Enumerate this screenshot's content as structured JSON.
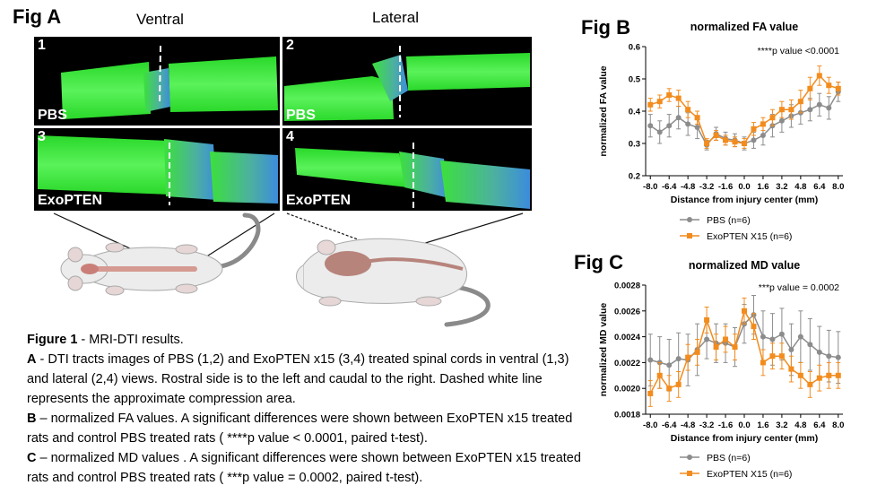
{
  "fig_a": {
    "label": "Fig A",
    "view_ventral": "Ventral",
    "view_lateral": "Lateral",
    "panels": [
      {
        "num": "1",
        "group": "PBS"
      },
      {
        "num": "2",
        "group": "PBS"
      },
      {
        "num": "3",
        "group": "ExoPTEN"
      },
      {
        "num": "4",
        "group": "ExoPTEN"
      }
    ]
  },
  "fig_b_label": "Fig B",
  "fig_c_label": "Fig C",
  "caption": {
    "title": "Figure 1",
    "title_rest": " - MRI-DTI results.",
    "a_key": "A",
    "a_text": " - DTI tracts images of PBS (1,2) and ExoPTEN x15 (3,4) treated spinal cords in ventral (1,3) and lateral (2,4) views. Rostral side is to the left and caudal to the right. Dashed white line represents the approximate compression area.",
    "b_key": "B",
    "b_text": " – normalized FA values. A significant differences were shown between ExoPTEN x15 treated rats and control PBS treated rats ( ****p value < 0.0001, paired t-test).",
    "c_key": "C",
    "c_text": " – normalized MD values . A significant differences were shown between ExoPTEN x15 treated rats and control PBS treated rats ( ***p value = 0.0002, paired t-test)."
  },
  "colors": {
    "pbs": "#8c8c8c",
    "exopten": "#f28c1e",
    "tract_green": "#3cf23c",
    "tract_blue": "#3c8cdc"
  },
  "chart_data": [
    {
      "type": "line",
      "title": "normalized FA value",
      "annotation": "****p value <0.0001",
      "xlabel": "Distance from injury center  (mm)",
      "ylabel": "normalized FA value",
      "ylim": [
        0.2,
        0.6
      ],
      "yticks": [
        0.2,
        0.3,
        0.4,
        0.5,
        0.6
      ],
      "ytick_labels": [
        "0.2",
        "0.3",
        "0.4",
        "0.5",
        "0.6"
      ],
      "xticks": [
        -8.0,
        -6.4,
        -4.8,
        -3.2,
        -1.6,
        0.0,
        1.6,
        3.2,
        4.8,
        6.4,
        8.0
      ],
      "xtick_labels": [
        "-8.0",
        "-6.4",
        "-4.8",
        "-3.2",
        "-1.6",
        "0.0",
        "1.6",
        "3.2",
        "4.8",
        "6.4",
        "8.0"
      ],
      "xlim": [
        -8.4,
        8.4
      ],
      "x": [
        -8.0,
        -7.2,
        -6.4,
        -5.6,
        -4.8,
        -4.0,
        -3.2,
        -2.4,
        -1.6,
        -0.8,
        0.0,
        0.8,
        1.6,
        2.4,
        3.2,
        4.0,
        4.8,
        5.6,
        6.4,
        7.2,
        8.0
      ],
      "series": [
        {
          "name": "PBS (n=6)",
          "color": "#8c8c8c",
          "marker": "circle",
          "values": [
            0.355,
            0.335,
            0.355,
            0.38,
            0.36,
            0.35,
            0.295,
            0.33,
            0.315,
            0.31,
            0.3,
            0.31,
            0.325,
            0.355,
            0.37,
            0.385,
            0.395,
            0.405,
            0.42,
            0.41,
            0.46
          ],
          "errors": [
            0.035,
            0.035,
            0.035,
            0.035,
            0.035,
            0.035,
            0.015,
            0.02,
            0.02,
            0.02,
            0.02,
            0.025,
            0.03,
            0.035,
            0.035,
            0.035,
            0.035,
            0.035,
            0.035,
            0.035,
            0.03
          ]
        },
        {
          "name": "ExoPTEN X15 (n=6)",
          "color": "#f28c1e",
          "marker": "square",
          "values": [
            0.42,
            0.43,
            0.45,
            0.44,
            0.405,
            0.38,
            0.3,
            0.325,
            0.31,
            0.305,
            0.3,
            0.345,
            0.36,
            0.38,
            0.405,
            0.405,
            0.43,
            0.47,
            0.51,
            0.48,
            0.47
          ],
          "errors": [
            0.02,
            0.02,
            0.02,
            0.025,
            0.025,
            0.02,
            0.015,
            0.015,
            0.015,
            0.015,
            0.015,
            0.02,
            0.02,
            0.025,
            0.025,
            0.03,
            0.035,
            0.035,
            0.03,
            0.025,
            0.02
          ]
        }
      ]
    },
    {
      "type": "line",
      "title": "normalized MD value",
      "annotation": "***p value = 0.0002",
      "xlabel": "Distance from injury center  (mm)",
      "ylabel": "normalized MD value",
      "ylim": [
        0.0018,
        0.0028
      ],
      "yticks": [
        0.0018,
        0.002,
        0.0022,
        0.0024,
        0.0026,
        0.0028
      ],
      "ytick_labels": [
        "0.0018",
        "0.0020",
        "0.0022",
        "0.0024",
        "0.0026",
        "0.0028"
      ],
      "xticks": [
        -8.0,
        -6.4,
        -4.8,
        -3.2,
        -1.6,
        0.0,
        1.6,
        3.2,
        4.8,
        6.4,
        8.0
      ],
      "xtick_labels": [
        "-8.0",
        "-6.4",
        "-4.8",
        "-3.2",
        "-1.6",
        "0.0",
        "1.6",
        "3.2",
        "4.8",
        "6.4",
        "8.0"
      ],
      "xlim": [
        -8.4,
        8.4
      ],
      "x": [
        -8.0,
        -7.2,
        -6.4,
        -5.6,
        -4.8,
        -4.0,
        -3.2,
        -2.4,
        -1.6,
        -0.8,
        0.0,
        0.8,
        1.6,
        2.4,
        3.2,
        4.0,
        4.8,
        5.6,
        6.4,
        7.2,
        8.0
      ],
      "series": [
        {
          "name": "PBS (n=6)",
          "color": "#8c8c8c",
          "marker": "circle",
          "values": [
            0.00222,
            0.0022,
            0.00218,
            0.00223,
            0.00222,
            0.0023,
            0.00238,
            0.00235,
            0.00235,
            0.00232,
            0.0025,
            0.00257,
            0.0024,
            0.00238,
            0.00242,
            0.0023,
            0.0024,
            0.00234,
            0.00228,
            0.00225,
            0.00224
          ],
          "errors": [
            0.0002,
            0.0002,
            0.0002,
            0.0002,
            0.0002,
            0.0002,
            0.00015,
            0.00015,
            0.00015,
            0.00015,
            0.00015,
            0.00015,
            0.0002,
            0.0002,
            0.0002,
            0.0002,
            0.0002,
            0.0002,
            0.0002,
            0.0002,
            0.0002
          ]
        },
        {
          "name": "ExoPTEN X15 (n=6)",
          "color": "#f28c1e",
          "marker": "square",
          "values": [
            0.00196,
            0.0021,
            0.002,
            0.00203,
            0.00224,
            0.00228,
            0.00253,
            0.00232,
            0.00238,
            0.00232,
            0.0026,
            0.00248,
            0.0022,
            0.00225,
            0.00225,
            0.00215,
            0.0021,
            0.00203,
            0.00208,
            0.0021,
            0.0021
          ],
          "errors": [
            0.0001,
            0.0001,
            0.0001,
            0.0001,
            0.0001,
            0.0001,
            0.0001,
            0.0001,
            0.0001,
            0.0001,
            0.0001,
            0.0001,
            0.0001,
            0.0001,
            0.0001,
            0.0001,
            0.0001,
            0.0001,
            0.0001,
            0.0001,
            0.0001
          ]
        }
      ]
    }
  ]
}
